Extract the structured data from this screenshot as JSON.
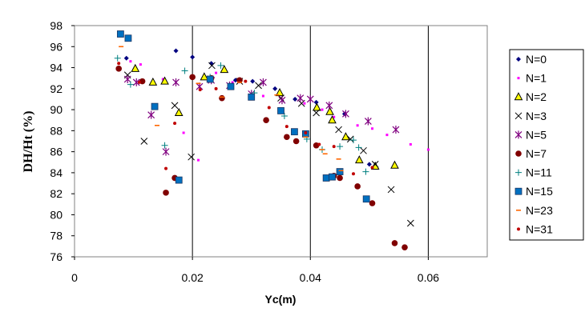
{
  "chart_data": {
    "type": "scatter",
    "title": "",
    "xlabel": "Yc(m)",
    "ylabel": "DH/Ht (%)",
    "xlim": [
      0,
      0.07
    ],
    "ylim": [
      76,
      98
    ],
    "xticks": [
      0,
      0.02,
      0.04,
      0.06
    ],
    "xtick_labels": [
      "0",
      "0.02",
      "0.04",
      "0.06"
    ],
    "yticks": [
      76,
      78,
      80,
      82,
      84,
      86,
      88,
      90,
      92,
      94,
      96,
      98
    ],
    "grid": "vertical-major",
    "legend": "right",
    "series": [
      {
        "name": "N=0",
        "marker": "diamond",
        "color": "#000080",
        "points": [
          [
            0.0088,
            94.9
          ],
          [
            0.0172,
            95.6
          ],
          [
            0.02,
            95.0
          ],
          [
            0.0232,
            94.4
          ],
          [
            0.0273,
            92.8
          ],
          [
            0.0302,
            92.7
          ],
          [
            0.034,
            92.0
          ],
          [
            0.0374,
            91.0
          ],
          [
            0.041,
            90.7
          ],
          [
            0.0458,
            89.6
          ],
          [
            0.05,
            84.8
          ]
        ]
      },
      {
        "name": "N=1",
        "marker": "square-s",
        "color": "#ff00ff",
        "points": [
          [
            0.0095,
            94.6
          ],
          [
            0.0112,
            94.3
          ],
          [
            0.015,
            92.9
          ],
          [
            0.0185,
            87.8
          ],
          [
            0.021,
            85.2
          ],
          [
            0.024,
            93.5
          ],
          [
            0.0268,
            92.6
          ],
          [
            0.032,
            91.3
          ],
          [
            0.035,
            91.4
          ],
          [
            0.039,
            90.6
          ],
          [
            0.042,
            90.0
          ],
          [
            0.044,
            89.3
          ],
          [
            0.048,
            88.5
          ],
          [
            0.0505,
            88.2
          ],
          [
            0.053,
            87.6
          ],
          [
            0.057,
            86.7
          ],
          [
            0.06,
            86.2
          ]
        ]
      },
      {
        "name": "N=2",
        "marker": "triangle",
        "color": "#ffff00",
        "points": [
          [
            0.0103,
            93.9
          ],
          [
            0.0133,
            92.6
          ],
          [
            0.0153,
            92.7
          ],
          [
            0.0177,
            89.7
          ],
          [
            0.022,
            93.1
          ],
          [
            0.0254,
            93.8
          ],
          [
            0.0348,
            91.6
          ],
          [
            0.0411,
            90.2
          ],
          [
            0.0433,
            89.8
          ],
          [
            0.0437,
            89.0
          ],
          [
            0.046,
            87.4
          ],
          [
            0.0483,
            85.2
          ],
          [
            0.051,
            84.6
          ],
          [
            0.0543,
            84.7
          ]
        ]
      },
      {
        "name": "N=3",
        "marker": "x",
        "color": "#000000",
        "points": [
          [
            0.009,
            93.3
          ],
          [
            0.0118,
            87.0
          ],
          [
            0.017,
            90.4
          ],
          [
            0.0198,
            85.5
          ],
          [
            0.0233,
            94.2
          ],
          [
            0.028,
            92.7
          ],
          [
            0.0312,
            92.3
          ],
          [
            0.035,
            91.1
          ],
          [
            0.0385,
            90.6
          ],
          [
            0.041,
            89.7
          ],
          [
            0.0448,
            88.1
          ],
          [
            0.0468,
            87.2
          ],
          [
            0.049,
            86.1
          ],
          [
            0.051,
            84.8
          ],
          [
            0.0537,
            82.4
          ],
          [
            0.057,
            79.2
          ]
        ]
      },
      {
        "name": "N=5",
        "marker": "asterisk",
        "color": "#800080",
        "points": [
          [
            0.009,
            92.9
          ],
          [
            0.0105,
            92.6
          ],
          [
            0.013,
            89.5
          ],
          [
            0.0155,
            86.0
          ],
          [
            0.0172,
            92.6
          ],
          [
            0.0212,
            92.2
          ],
          [
            0.0232,
            92.8
          ],
          [
            0.0263,
            92.3
          ],
          [
            0.03,
            91.5
          ],
          [
            0.032,
            92.6
          ],
          [
            0.0352,
            90.9
          ],
          [
            0.0383,
            91.1
          ],
          [
            0.04,
            91.0
          ],
          [
            0.0432,
            90.4
          ],
          [
            0.046,
            89.6
          ],
          [
            0.0498,
            88.9
          ],
          [
            0.0545,
            88.1
          ]
        ]
      },
      {
        "name": "N=7",
        "marker": "circle",
        "color": "#800000",
        "points": [
          [
            0.0075,
            93.9
          ],
          [
            0.0115,
            92.7
          ],
          [
            0.0155,
            82.1
          ],
          [
            0.017,
            83.5
          ],
          [
            0.02,
            93.1
          ],
          [
            0.0232,
            93.0
          ],
          [
            0.025,
            91.1
          ],
          [
            0.028,
            92.8
          ],
          [
            0.0325,
            89.0
          ],
          [
            0.036,
            87.4
          ],
          [
            0.0376,
            87.0
          ],
          [
            0.041,
            86.6
          ],
          [
            0.044,
            83.7
          ],
          [
            0.045,
            83.5
          ],
          [
            0.048,
            82.7
          ],
          [
            0.0505,
            81.1
          ],
          [
            0.0543,
            77.3
          ],
          [
            0.056,
            76.9
          ]
        ]
      },
      {
        "name": "N=11",
        "marker": "plus",
        "color": "#008080",
        "points": [
          [
            0.0073,
            94.9
          ],
          [
            0.0095,
            92.4
          ],
          [
            0.0153,
            86.6
          ],
          [
            0.0187,
            93.7
          ],
          [
            0.023,
            93.1
          ],
          [
            0.0248,
            94.2
          ],
          [
            0.0305,
            91.6
          ],
          [
            0.0356,
            89.4
          ],
          [
            0.0394,
            87.2
          ],
          [
            0.042,
            86.2
          ],
          [
            0.045,
            86.5
          ],
          [
            0.0473,
            87.1
          ],
          [
            0.0482,
            86.4
          ],
          [
            0.0494,
            84.1
          ]
        ]
      },
      {
        "name": "N=15",
        "marker": "square",
        "color": "#0070c0",
        "points": [
          [
            0.0078,
            97.2
          ],
          [
            0.0091,
            96.8
          ],
          [
            0.0136,
            90.3
          ],
          [
            0.0177,
            83.3
          ],
          [
            0.023,
            92.9
          ],
          [
            0.0265,
            92.2
          ],
          [
            0.03,
            91.2
          ],
          [
            0.035,
            89.9
          ],
          [
            0.0373,
            87.9
          ],
          [
            0.0392,
            87.7
          ],
          [
            0.0427,
            83.5
          ],
          [
            0.0437,
            83.6
          ],
          [
            0.045,
            84.1
          ],
          [
            0.0495,
            81.5
          ]
        ]
      },
      {
        "name": "N=23",
        "marker": "dash",
        "color": "#ff6600",
        "points": [
          [
            0.0079,
            96.0
          ],
          [
            0.014,
            88.5
          ],
          [
            0.021,
            92.5
          ],
          [
            0.025,
            91.2
          ],
          [
            0.028,
            92.6
          ],
          [
            0.0343,
            91.4
          ],
          [
            0.0392,
            87.4
          ],
          [
            0.042,
            86.2
          ],
          [
            0.0425,
            85.8
          ],
          [
            0.0448,
            85.3
          ],
          [
            0.0452,
            84.2
          ]
        ]
      },
      {
        "name": "N=31",
        "marker": "dot",
        "color": "#c00000",
        "points": [
          [
            0.0075,
            94.4
          ],
          [
            0.011,
            92.6
          ],
          [
            0.0155,
            84.4
          ],
          [
            0.017,
            88.7
          ],
          [
            0.0213,
            91.9
          ],
          [
            0.024,
            92.0
          ],
          [
            0.029,
            92.7
          ],
          [
            0.033,
            90.2
          ],
          [
            0.036,
            88.4
          ],
          [
            0.0392,
            87.8
          ],
          [
            0.0415,
            86.7
          ],
          [
            0.044,
            86.5
          ],
          [
            0.0473,
            83.9
          ],
          [
            0.0505,
            84.5
          ]
        ]
      }
    ]
  }
}
